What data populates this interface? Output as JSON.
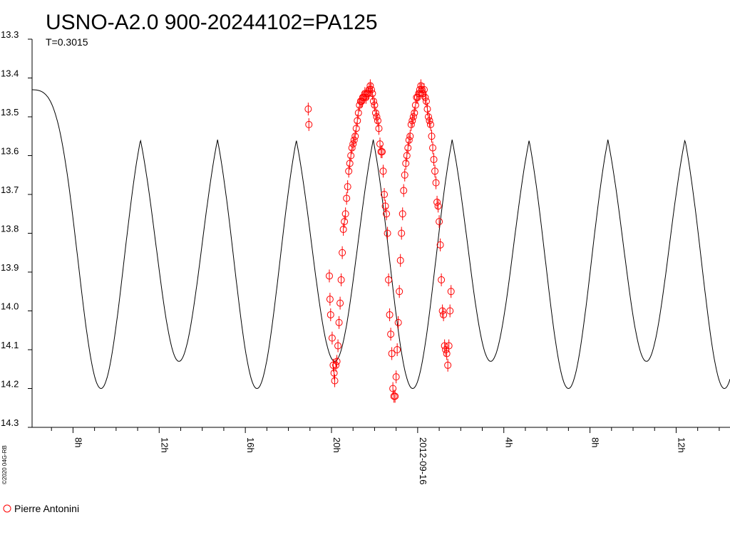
{
  "chart_data": {
    "type": "scatter",
    "title": "USNO-A2.0 900-20244102=PA125",
    "subtitle": "T=0.3015",
    "copyright": "©2020 04G-RB",
    "ylim": [
      13.3,
      14.3
    ],
    "y_inverted": true,
    "yticks": [
      "13.3",
      "13.4",
      "13.5",
      "13.6",
      "13.7",
      "13.8",
      "13.9",
      "14.0",
      "14.1",
      "14.2",
      "14.3"
    ],
    "xticks": [
      {
        "label": "8h",
        "hour": 8
      },
      {
        "label": "12h",
        "hour": 12
      },
      {
        "label": "16h",
        "hour": 16
      },
      {
        "label": "20h",
        "hour": 20
      },
      {
        "label": "2012-09-16",
        "hour": 24
      },
      {
        "label": "4h",
        "hour": 28
      },
      {
        "label": "8h",
        "hour": 32
      },
      {
        "label": "12h",
        "hour": 36
      }
    ],
    "xlim_hours": [
      6.1,
      38.5
    ],
    "model": {
      "name": "fitted light curve",
      "period_hours": 7.236,
      "max_mag": 13.43,
      "deep_min_mag": 14.2,
      "shallow_min_mag": 14.13,
      "deep_min_hours": [
        9.3,
        16.54,
        23.77,
        31.0,
        38.24
      ],
      "shallow_min_hours": [
        12.92,
        20.15,
        27.39,
        34.62
      ]
    },
    "series": [
      {
        "name": "Pierre Antonini",
        "color": "#ff0000",
        "points": [
          [
            18.92,
            13.48
          ],
          [
            18.95,
            13.52
          ],
          [
            19.9,
            13.91
          ],
          [
            19.93,
            13.97
          ],
          [
            19.96,
            14.01
          ],
          [
            20.03,
            14.07
          ],
          [
            20.08,
            14.14
          ],
          [
            20.12,
            14.16
          ],
          [
            20.15,
            14.18
          ],
          [
            20.2,
            14.14
          ],
          [
            20.25,
            14.13
          ],
          [
            20.3,
            14.09
          ],
          [
            20.35,
            14.03
          ],
          [
            20.4,
            13.98
          ],
          [
            20.45,
            13.92
          ],
          [
            20.5,
            13.85
          ],
          [
            20.55,
            13.79
          ],
          [
            20.6,
            13.77
          ],
          [
            20.65,
            13.75
          ],
          [
            20.7,
            13.71
          ],
          [
            20.75,
            13.68
          ],
          [
            20.8,
            13.64
          ],
          [
            20.85,
            13.62
          ],
          [
            20.9,
            13.6
          ],
          [
            20.95,
            13.58
          ],
          [
            21.0,
            13.57
          ],
          [
            21.05,
            13.56
          ],
          [
            21.1,
            13.55
          ],
          [
            21.15,
            13.53
          ],
          [
            21.2,
            13.51
          ],
          [
            21.25,
            13.49
          ],
          [
            21.3,
            13.47
          ],
          [
            21.35,
            13.46
          ],
          [
            21.4,
            13.46
          ],
          [
            21.45,
            13.45
          ],
          [
            21.5,
            13.45
          ],
          [
            21.55,
            13.44
          ],
          [
            21.6,
            13.45
          ],
          [
            21.65,
            13.44
          ],
          [
            21.7,
            13.44
          ],
          [
            21.75,
            13.43
          ],
          [
            21.8,
            13.42
          ],
          [
            21.85,
            13.43
          ],
          [
            21.9,
            13.44
          ],
          [
            21.95,
            13.46
          ],
          [
            22.0,
            13.47
          ],
          [
            22.05,
            13.49
          ],
          [
            22.1,
            13.5
          ],
          [
            22.15,
            13.51
          ],
          [
            22.2,
            13.53
          ],
          [
            22.25,
            13.57
          ],
          [
            22.3,
            13.59
          ],
          [
            22.35,
            13.59
          ],
          [
            22.4,
            13.64
          ],
          [
            22.45,
            13.7
          ],
          [
            22.5,
            13.73
          ],
          [
            22.55,
            13.75
          ],
          [
            22.6,
            13.8
          ],
          [
            22.65,
            13.92
          ],
          [
            22.7,
            14.01
          ],
          [
            22.75,
            14.06
          ],
          [
            22.8,
            14.11
          ],
          [
            22.85,
            14.2
          ],
          [
            22.9,
            14.22
          ],
          [
            22.95,
            14.22
          ],
          [
            23.0,
            14.17
          ],
          [
            23.05,
            14.1
          ],
          [
            23.1,
            14.03
          ],
          [
            23.15,
            13.95
          ],
          [
            23.2,
            13.87
          ],
          [
            23.25,
            13.8
          ],
          [
            23.3,
            13.75
          ],
          [
            23.35,
            13.69
          ],
          [
            23.4,
            13.65
          ],
          [
            23.45,
            13.62
          ],
          [
            23.5,
            13.6
          ],
          [
            23.55,
            13.58
          ],
          [
            23.6,
            13.56
          ],
          [
            23.65,
            13.55
          ],
          [
            23.7,
            13.52
          ],
          [
            23.75,
            13.51
          ],
          [
            23.8,
            13.5
          ],
          [
            23.85,
            13.49
          ],
          [
            23.9,
            13.47
          ],
          [
            23.95,
            13.45
          ],
          [
            24.0,
            13.45
          ],
          [
            24.05,
            13.44
          ],
          [
            24.1,
            13.43
          ],
          [
            24.15,
            13.42
          ],
          [
            24.2,
            13.43
          ],
          [
            24.25,
            13.44
          ],
          [
            24.3,
            13.43
          ],
          [
            24.35,
            13.45
          ],
          [
            24.4,
            13.46
          ],
          [
            24.45,
            13.48
          ],
          [
            24.5,
            13.5
          ],
          [
            24.55,
            13.51
          ],
          [
            24.6,
            13.52
          ],
          [
            24.65,
            13.55
          ],
          [
            24.7,
            13.58
          ],
          [
            24.75,
            13.61
          ],
          [
            24.8,
            13.64
          ],
          [
            24.85,
            13.67
          ],
          [
            24.9,
            13.72
          ],
          [
            24.95,
            13.73
          ],
          [
            25.0,
            13.77
          ],
          [
            25.05,
            13.83
          ],
          [
            25.1,
            13.92
          ],
          [
            25.15,
            14.0
          ],
          [
            25.2,
            14.01
          ],
          [
            25.25,
            14.09
          ],
          [
            25.3,
            14.1
          ],
          [
            25.35,
            14.11
          ],
          [
            25.4,
            14.14
          ],
          [
            25.45,
            14.09
          ],
          [
            25.5,
            14.0
          ],
          [
            25.55,
            13.95
          ]
        ]
      }
    ],
    "legend": {
      "position": "bottom-left",
      "label": "Pierre Antonini"
    }
  }
}
